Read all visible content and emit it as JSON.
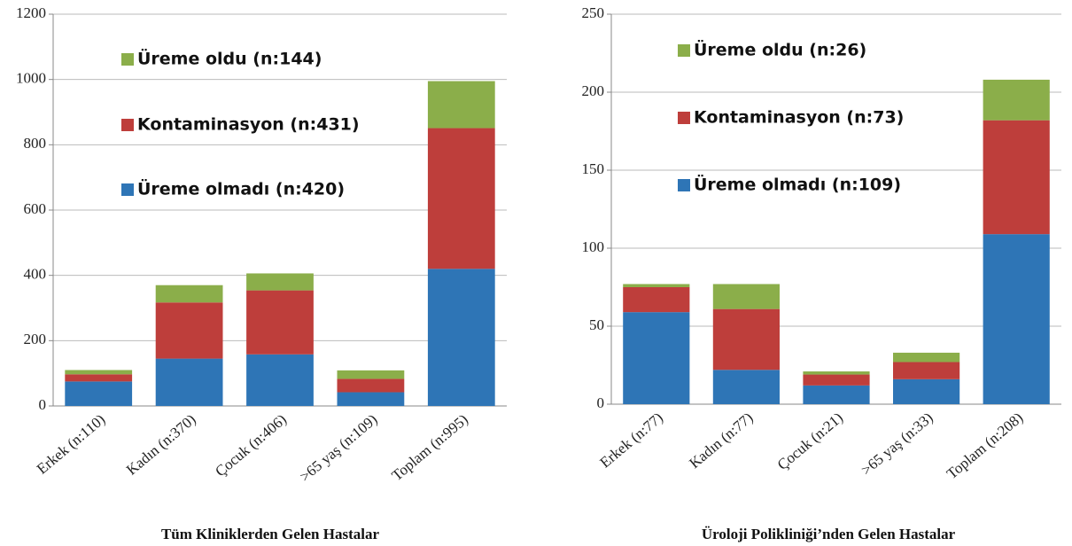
{
  "chart_data": [
    {
      "type": "bar",
      "stacked": true,
      "caption": "Tüm Kliniklerden Gelen Hastalar",
      "categories": [
        "Erkek (n:110)",
        "Kadın (n:370)",
        "Çocuk (n:406)",
        ">65 yaş (n:109)",
        "Toplam (n:995)"
      ],
      "series": [
        {
          "name": "Üreme olmadı (n:420)",
          "color": "#2e75b6",
          "values": [
            75,
            145,
            158,
            42,
            420
          ]
        },
        {
          "name": "Kontaminasyon (n:431)",
          "color": "#be3e3b",
          "values": [
            22,
            172,
            196,
            41,
            431
          ]
        },
        {
          "name": "Üreme oldu (n:144)",
          "color": "#8bae4a",
          "values": [
            13,
            53,
            52,
            26,
            144
          ]
        }
      ],
      "ylim": [
        0,
        1200
      ],
      "yticks": [
        0,
        200,
        400,
        600,
        800,
        1000,
        1200
      ],
      "grid": true
    },
    {
      "type": "bar",
      "stacked": true,
      "caption": "Üroloji Polikliniği’nden Gelen Hastalar",
      "categories": [
        "Erkek (n:77)",
        "Kadın (n:77)",
        "Çocuk (n:21)",
        ">65 yaş (n:33)",
        "Toplam (n:208)"
      ],
      "series": [
        {
          "name": "Üreme olmadı (n:109)",
          "color": "#2e75b6",
          "values": [
            59,
            22,
            12,
            16,
            109
          ]
        },
        {
          "name": "Kontaminasyon (n:73)",
          "color": "#be3e3b",
          "values": [
            16,
            39,
            7,
            11,
            73
          ]
        },
        {
          "name": "Üreme oldu (n:26)",
          "color": "#8bae4a",
          "values": [
            2,
            16,
            2,
            6,
            26
          ]
        }
      ],
      "ylim": [
        0,
        250
      ],
      "yticks": [
        0,
        50,
        100,
        150,
        200,
        250
      ],
      "grid": true
    }
  ]
}
